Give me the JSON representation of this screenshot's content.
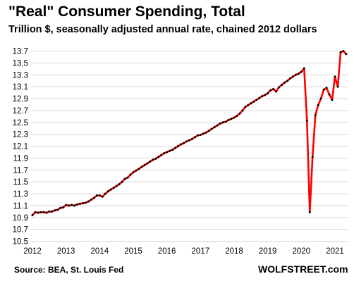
{
  "chart_data": {
    "type": "line",
    "title": "\"Real\" Consumer Spending, Total",
    "subtitle": "Trillion $, seasonally adjusted annual rate, chained 2012 dollars",
    "xlabel": "",
    "ylabel": "",
    "ylim": [
      10.5,
      13.8
    ],
    "yticks": [
      13.7,
      13.5,
      13.3,
      13.1,
      12.9,
      12.7,
      12.5,
      12.3,
      12.1,
      11.9,
      11.7,
      11.5,
      11.3,
      11.1,
      10.9,
      10.7,
      10.5
    ],
    "ytick_labels": [
      "13.7",
      "13.5",
      "13.3",
      "13.1",
      "12.9",
      "12.7",
      "12.5",
      "12.3",
      "12.1",
      "11.9",
      "11.7",
      "11.5",
      "11.3",
      "11.1",
      "10.9",
      "10.7",
      "10.5"
    ],
    "xticks": [
      2012,
      2013,
      2014,
      2015,
      2016,
      2017,
      2018,
      2019,
      2020,
      2021
    ],
    "xtick_labels": [
      "2012",
      "2013",
      "2014",
      "2015",
      "2016",
      "2017",
      "2018",
      "2019",
      "2020",
      "2021"
    ],
    "xlim": [
      2012,
      2021.4
    ],
    "grid": true,
    "series": [
      {
        "color": "#ff0000",
        "marker_color": "#000000",
        "x": [
          2012.0,
          2012.083,
          2012.167,
          2012.25,
          2012.333,
          2012.417,
          2012.5,
          2012.583,
          2012.667,
          2012.75,
          2012.833,
          2012.917,
          2013.0,
          2013.083,
          2013.167,
          2013.25,
          2013.333,
          2013.417,
          2013.5,
          2013.583,
          2013.667,
          2013.75,
          2013.833,
          2013.917,
          2014.0,
          2014.083,
          2014.167,
          2014.25,
          2014.333,
          2014.417,
          2014.5,
          2014.583,
          2014.667,
          2014.75,
          2014.833,
          2014.917,
          2015.0,
          2015.083,
          2015.167,
          2015.25,
          2015.333,
          2015.417,
          2015.5,
          2015.583,
          2015.667,
          2015.75,
          2015.833,
          2015.917,
          2016.0,
          2016.083,
          2016.167,
          2016.25,
          2016.333,
          2016.417,
          2016.5,
          2016.583,
          2016.667,
          2016.75,
          2016.833,
          2016.917,
          2017.0,
          2017.083,
          2017.167,
          2017.25,
          2017.333,
          2017.417,
          2017.5,
          2017.583,
          2017.667,
          2017.75,
          2017.833,
          2017.917,
          2018.0,
          2018.083,
          2018.167,
          2018.25,
          2018.333,
          2018.417,
          2018.5,
          2018.583,
          2018.667,
          2018.75,
          2018.833,
          2018.917,
          2019.0,
          2019.083,
          2019.167,
          2019.25,
          2019.333,
          2019.417,
          2019.5,
          2019.583,
          2019.667,
          2019.75,
          2019.833,
          2019.917,
          2020.0,
          2020.083,
          2020.167,
          2020.25,
          2020.333,
          2020.417,
          2020.5,
          2020.583,
          2020.667,
          2020.75,
          2020.833,
          2020.917,
          2021.0,
          2021.083,
          2021.167,
          2021.25,
          2021.333
        ],
        "values": [
          10.94,
          10.99,
          10.98,
          10.99,
          10.99,
          10.98,
          11.0,
          11.0,
          11.02,
          11.03,
          11.06,
          11.07,
          11.11,
          11.1,
          11.11,
          11.1,
          11.12,
          11.13,
          11.14,
          11.15,
          11.17,
          11.2,
          11.23,
          11.27,
          11.27,
          11.25,
          11.3,
          11.34,
          11.37,
          11.4,
          11.43,
          11.46,
          11.5,
          11.55,
          11.57,
          11.62,
          11.66,
          11.69,
          11.72,
          11.75,
          11.78,
          11.81,
          11.84,
          11.87,
          11.89,
          11.92,
          11.95,
          11.98,
          12.0,
          12.02,
          12.04,
          12.07,
          12.1,
          12.13,
          12.15,
          12.18,
          12.2,
          12.22,
          12.25,
          12.28,
          12.29,
          12.31,
          12.33,
          12.36,
          12.39,
          12.42,
          12.45,
          12.48,
          12.5,
          12.51,
          12.54,
          12.56,
          12.58,
          12.61,
          12.65,
          12.7,
          12.76,
          12.79,
          12.82,
          12.85,
          12.88,
          12.91,
          12.94,
          12.96,
          12.99,
          13.04,
          13.06,
          13.02,
          13.09,
          13.13,
          13.17,
          13.2,
          13.24,
          13.27,
          13.3,
          13.32,
          13.35,
          13.41,
          12.53,
          10.99,
          11.92,
          12.62,
          12.79,
          12.9,
          13.05,
          13.08,
          12.97,
          12.88,
          13.27,
          13.1,
          13.68,
          13.7,
          13.65
        ]
      }
    ]
  },
  "footer": {
    "source": "Source: BEA, St. Louis Fed",
    "brand": "WOLFSTREET.com"
  }
}
